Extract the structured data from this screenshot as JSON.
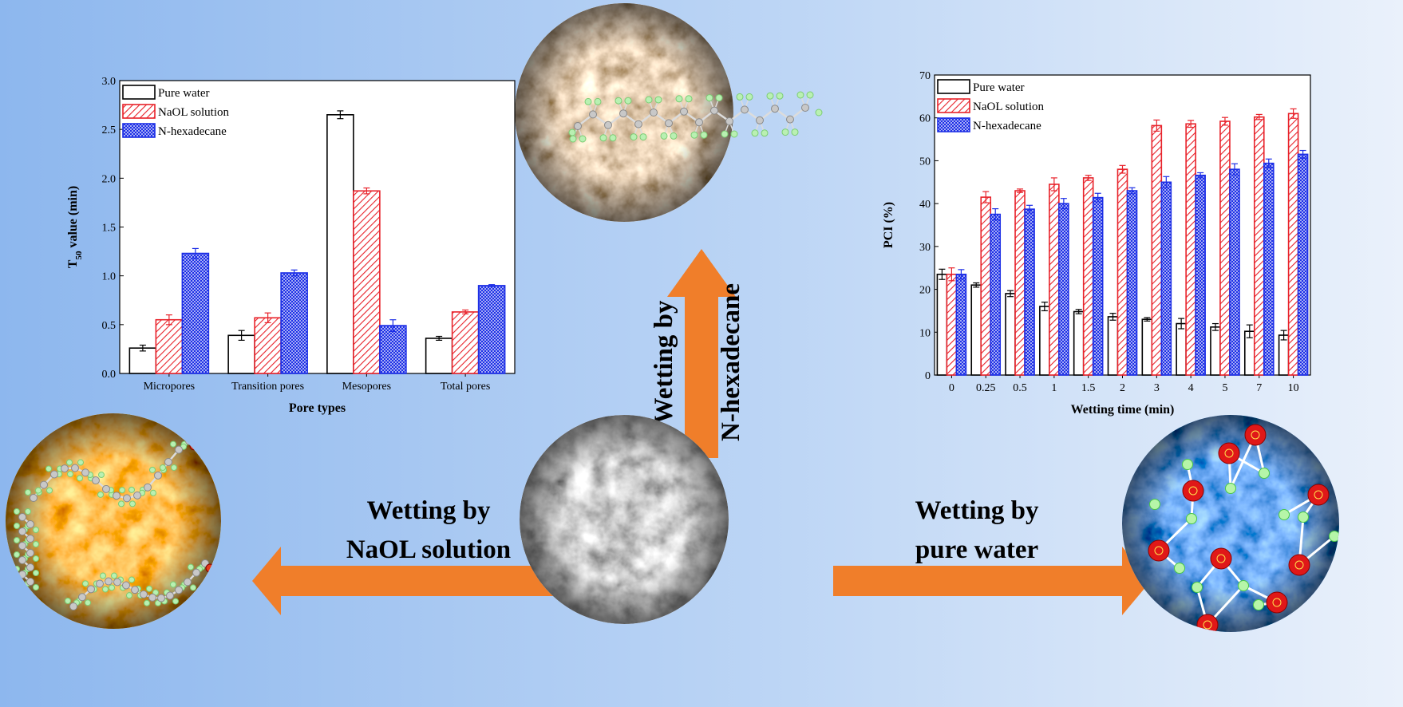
{
  "labels": {
    "wet_hexadecane_1": "Wetting by",
    "wet_hexadecane_2": "N-hexadecane",
    "wet_naol_1": "Wetting by",
    "wet_naol_2": "NaOL solution",
    "wet_water_1": "Wetting by",
    "wet_water_2": "pure water"
  },
  "colors": {
    "background_left": "#8fb9ee",
    "background_right": "#e8f0fb",
    "arrow": "#f07e2a",
    "pure_water": "#000000",
    "naol": "#e8222a",
    "hexadecane": "#1c2ee6",
    "oxygen_atom": "#e01818",
    "hydrogen_atom": "#5de55d"
  },
  "icons": {
    "center_image": "sem-micrograph-gray",
    "top_image": "sem-micrograph-hexadecane",
    "left_image": "sem-micrograph-naol",
    "right_image": "sem-micrograph-water"
  },
  "chart_data": [
    {
      "type": "bar",
      "title": "",
      "xlabel": "Pore types",
      "ylabel": "T50 value (min)",
      "ylabel_main": "T",
      "ylabel_sub": "50",
      "ylabel_rest": " value (min)",
      "ylim": [
        0,
        3.0
      ],
      "yticks": [
        "0.0",
        "0.5",
        "1.0",
        "1.5",
        "2.0",
        "2.5",
        "3.0"
      ],
      "categories": [
        "Micropores",
        "Transition pores",
        "Mesopores",
        "Total pores"
      ],
      "legend_position": "top-left",
      "series": [
        {
          "name": "Pure water",
          "values": [
            0.26,
            0.39,
            2.65,
            0.36
          ],
          "errors": [
            0.03,
            0.05,
            0.04,
            0.02
          ]
        },
        {
          "name": "NaOL solution",
          "values": [
            0.55,
            0.57,
            1.87,
            0.63
          ],
          "errors": [
            0.05,
            0.05,
            0.03,
            0.02
          ]
        },
        {
          "name": "N-hexadecane",
          "values": [
            1.23,
            1.03,
            0.49,
            0.9
          ],
          "errors": [
            0.05,
            0.03,
            0.06,
            0.01
          ]
        }
      ]
    },
    {
      "type": "bar",
      "title": "",
      "xlabel": "Wetting time (min)",
      "ylabel": "PCI (%)",
      "ylim": [
        0,
        70
      ],
      "yticks": [
        "0",
        "10",
        "20",
        "30",
        "40",
        "50",
        "60",
        "70"
      ],
      "categories": [
        "0",
        "0.25",
        "0.5",
        "1",
        "1.5",
        "2",
        "3",
        "4",
        "5",
        "7",
        "10"
      ],
      "legend_position": "top-left",
      "series": [
        {
          "name": "Pure water",
          "values": [
            23.5,
            21.0,
            19.0,
            16.0,
            14.8,
            13.6,
            13.0,
            12.0,
            11.2,
            10.2,
            9.3
          ],
          "errors": [
            1.2,
            0.5,
            0.7,
            1.0,
            0.5,
            0.8,
            0.4,
            1.2,
            0.8,
            1.5,
            1.1
          ]
        },
        {
          "name": "NaOL solution",
          "values": [
            23.5,
            41.5,
            43.0,
            44.5,
            46.0,
            48.0,
            58.2,
            58.6,
            59.2,
            60.2,
            61.0
          ],
          "errors": [
            1.5,
            1.3,
            0.4,
            1.5,
            0.6,
            0.9,
            1.3,
            0.8,
            0.9,
            0.6,
            1.1
          ]
        },
        {
          "name": "N-hexadecane",
          "values": [
            23.5,
            37.5,
            38.7,
            40.0,
            41.4,
            43.0,
            45.0,
            46.6,
            48.0,
            49.4,
            51.5
          ],
          "errors": [
            1.1,
            1.3,
            0.9,
            1.2,
            1.0,
            0.7,
            1.3,
            0.6,
            1.3,
            1.0,
            0.9
          ]
        }
      ]
    }
  ]
}
